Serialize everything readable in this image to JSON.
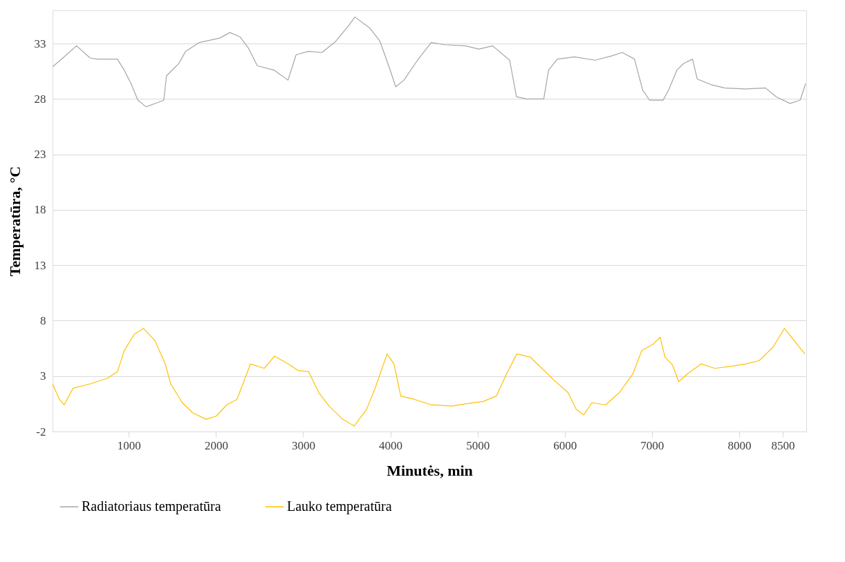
{
  "chart_data": {
    "type": "line",
    "xlabel": "Minutės, min",
    "ylabel": "Temperatūra, °C",
    "xlim": [
      125,
      8770
    ],
    "xticks": [
      1000,
      2000,
      3000,
      4000,
      5000,
      6000,
      7000,
      8000,
      8500
    ],
    "ylim": [
      -2,
      36
    ],
    "yticks": [
      -2,
      3,
      8,
      13,
      18,
      23,
      28,
      33
    ],
    "grid": "y",
    "legend": "bottom",
    "marker": "none",
    "line_style": "solid",
    "series": [
      {
        "name": "Radiatoriaus temperatūra",
        "color": "#a5a5a5",
        "x": [
          125,
          243,
          400,
          556,
          634,
          869,
          947,
          1025,
          1103,
          1197,
          1338,
          1401,
          1432,
          1573,
          1651,
          1808,
          2043,
          2160,
          2277,
          2371,
          2473,
          2668,
          2825,
          2919,
          3060,
          3216,
          3372,
          3529,
          3592,
          3764,
          3881,
          3998,
          4061,
          4155,
          4311,
          4468,
          4624,
          4859,
          5016,
          5172,
          5368,
          5446,
          5563,
          5759,
          5814,
          5915,
          6111,
          6346,
          6541,
          6659,
          6800,
          6894,
          6972,
          7128,
          7191,
          7285,
          7363,
          7465,
          7520,
          7676,
          7832,
          8067,
          8302,
          8426,
          8583,
          8700,
          8763
        ],
        "values": [
          30.9,
          31.7,
          32.8,
          31.7,
          31.6,
          31.6,
          30.6,
          29.4,
          27.9,
          27.3,
          27.7,
          27.9,
          30.1,
          31.2,
          32.3,
          33.1,
          33.5,
          34.0,
          33.6,
          32.6,
          31.0,
          30.6,
          29.7,
          32.0,
          32.3,
          32.2,
          33.2,
          34.7,
          35.4,
          34.4,
          33.2,
          30.6,
          29.1,
          29.7,
          31.5,
          33.1,
          32.9,
          32.8,
          32.5,
          32.8,
          31.5,
          28.2,
          28.0,
          28.0,
          30.6,
          31.6,
          31.8,
          31.5,
          31.9,
          32.2,
          31.6,
          28.8,
          27.9,
          27.9,
          28.8,
          30.6,
          31.2,
          31.6,
          29.8,
          29.3,
          29.0,
          28.9,
          29.0,
          28.2,
          27.6,
          27.9,
          29.4
        ]
      },
      {
        "name": "Lauko temperatūra",
        "color": "#ffc000",
        "x": [
          125,
          204,
          258,
          360,
          556,
          752,
          869,
          947,
          1065,
          1167,
          1300,
          1417,
          1480,
          1613,
          1730,
          1887,
          2005,
          2122,
          2240,
          2396,
          2553,
          2670,
          2827,
          2944,
          3062,
          3179,
          3297,
          3453,
          3586,
          3727,
          3829,
          3962,
          4041,
          4119,
          4276,
          4471,
          4706,
          4863,
          5059,
          5215,
          5333,
          5450,
          5607,
          5764,
          5881,
          6038,
          6132,
          6218,
          6312,
          6468,
          6625,
          6781,
          6883,
          7016,
          7095,
          7150,
          7236,
          7306,
          7408,
          7565,
          7721,
          7917,
          8074,
          8230,
          8387,
          8520,
          8661,
          8755
        ],
        "values": [
          2.3,
          0.9,
          0.4,
          1.9,
          2.3,
          2.8,
          3.4,
          5.3,
          6.8,
          7.3,
          6.2,
          4.1,
          2.3,
          0.6,
          -0.3,
          -0.9,
          -0.6,
          0.4,
          0.9,
          4.1,
          3.7,
          4.8,
          4.1,
          3.5,
          3.4,
          1.5,
          0.3,
          -0.9,
          -1.5,
          0.0,
          2.0,
          5.0,
          4.1,
          1.2,
          0.9,
          0.4,
          0.3,
          0.5,
          0.7,
          1.2,
          3.2,
          5.0,
          4.7,
          3.5,
          2.6,
          1.5,
          0.0,
          -0.5,
          0.6,
          0.4,
          1.5,
          3.2,
          5.3,
          5.9,
          6.5,
          4.7,
          4.0,
          2.5,
          3.2,
          4.1,
          3.7,
          3.9,
          4.1,
          4.4,
          5.6,
          7.3,
          5.9,
          5.0
        ]
      }
    ]
  }
}
